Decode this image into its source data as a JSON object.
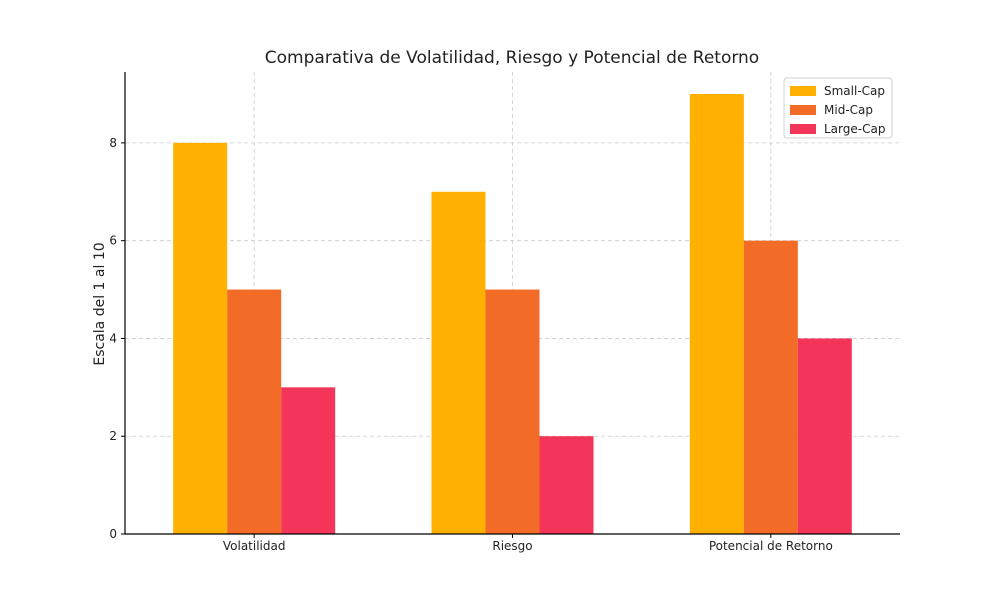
{
  "chart_data": {
    "type": "bar",
    "title": "Comparativa de Volatilidad, Riesgo y Potencial de Retorno",
    "xlabel": "",
    "ylabel": "Escala del 1 al 10",
    "categories": [
      "Volatilidad",
      "Riesgo",
      "Potencial de Retorno"
    ],
    "series": [
      {
        "name": "Small-Cap",
        "values": [
          8,
          7,
          9
        ],
        "color": "#FFB000"
      },
      {
        "name": "Mid-Cap",
        "values": [
          5,
          5,
          6
        ],
        "color": "#F26B27"
      },
      {
        "name": "Large-Cap",
        "values": [
          3,
          2,
          4
        ],
        "color": "#F23558"
      }
    ],
    "ylim": [
      0,
      9.45
    ],
    "yticks": [
      "0",
      "2",
      "4",
      "6",
      "8"
    ],
    "grid": true,
    "legend_position": "top-right"
  }
}
